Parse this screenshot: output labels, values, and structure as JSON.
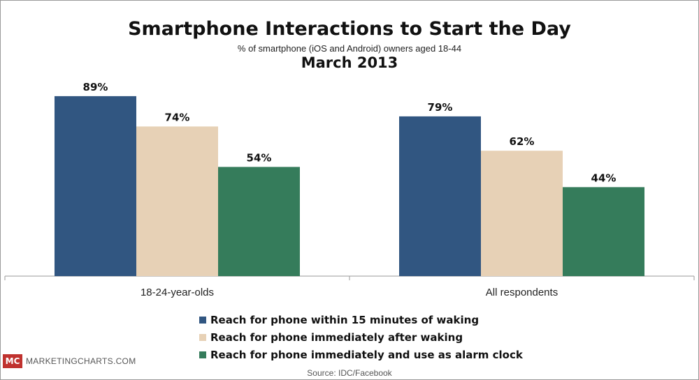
{
  "chart_data": {
    "type": "bar",
    "title": "Smartphone Interactions to Start the Day",
    "subtitle": "% of smartphone (iOS and Android) owners aged 18-44",
    "date": "March 2013",
    "categories": [
      "18-24-year-olds",
      "All respondents"
    ],
    "series": [
      {
        "name": "Reach for phone within 15 minutes of waking",
        "values": [
          89,
          79
        ],
        "labels": [
          "89%",
          "79%"
        ],
        "color": "#315681"
      },
      {
        "name": "Reach for phone immediately after waking",
        "values": [
          74,
          62
        ],
        "labels": [
          "74%",
          "62%"
        ],
        "color": "#e7d1b6"
      },
      {
        "name": "Reach for phone immediately and use as alarm clock",
        "values": [
          54,
          44
        ],
        "labels": [
          "54%",
          "44%"
        ],
        "color": "#357c5b"
      }
    ],
    "ylim": [
      0,
      100
    ],
    "grid": false,
    "legend_position": "bottom"
  },
  "footer": {
    "brand_logo": "MC",
    "brand_name": "MARKETINGCHARTS.COM",
    "source": "Source: IDC/Facebook"
  }
}
